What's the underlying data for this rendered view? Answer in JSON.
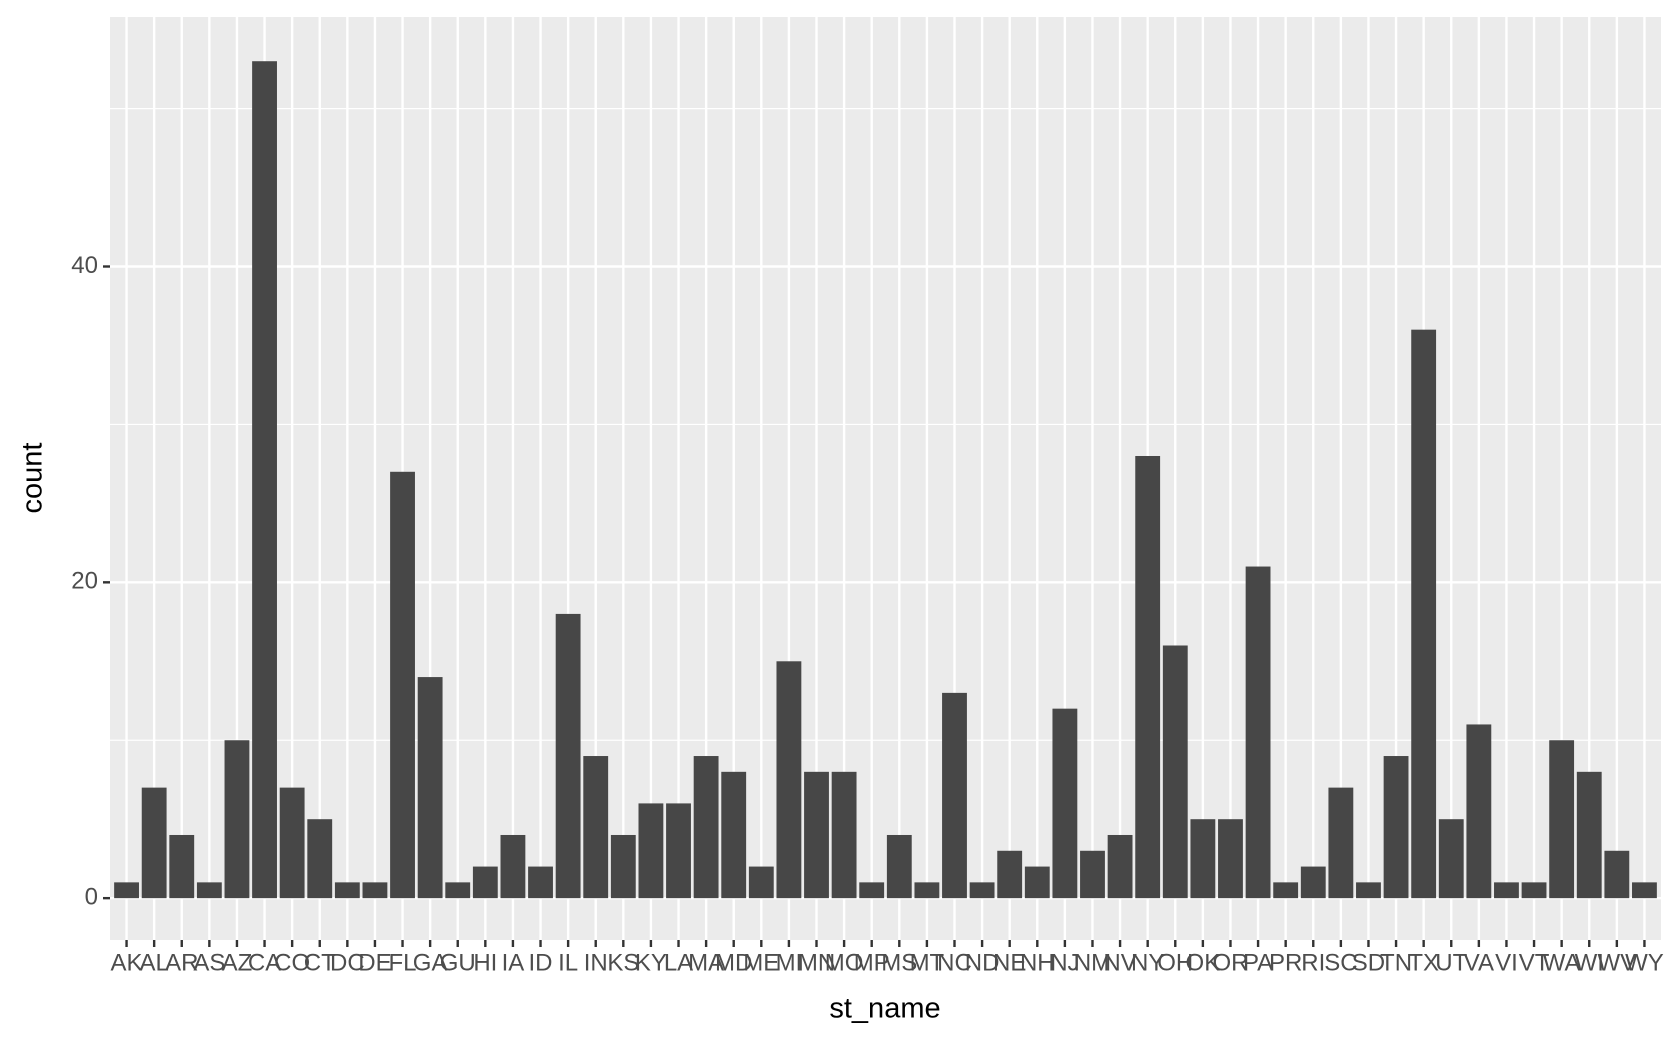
{
  "chart_data": {
    "type": "bar",
    "x_label": "st_name",
    "y_label": "count",
    "categories": [
      "AK",
      "AL",
      "AR",
      "AS",
      "AZ",
      "CA",
      "CO",
      "CT",
      "DC",
      "DE",
      "FL",
      "GA",
      "GU",
      "HI",
      "IA",
      "ID",
      "IL",
      "IN",
      "KS",
      "KY",
      "LA",
      "MA",
      "MD",
      "ME",
      "MI",
      "MN",
      "MO",
      "MP",
      "MS",
      "MT",
      "NC",
      "ND",
      "NE",
      "NH",
      "NJ",
      "NM",
      "NV",
      "NY",
      "OH",
      "OK",
      "OR",
      "PA",
      "PR",
      "RI",
      "SC",
      "SD",
      "TN",
      "TX",
      "UT",
      "VA",
      "VI",
      "VT",
      "WA",
      "WI",
      "WV",
      "WY"
    ],
    "values": [
      1,
      7,
      4,
      1,
      10,
      53,
      7,
      5,
      1,
      1,
      27,
      14,
      1,
      2,
      4,
      2,
      18,
      9,
      4,
      6,
      6,
      9,
      8,
      2,
      15,
      8,
      8,
      1,
      4,
      1,
      13,
      1,
      3,
      2,
      12,
      3,
      4,
      28,
      16,
      5,
      5,
      21,
      1,
      2,
      7,
      1,
      9,
      36,
      5,
      11,
      1,
      1,
      10,
      8,
      3,
      1
    ],
    "color": "#474747",
    "ylim": [
      -2.65,
      55.8
    ],
    "yticks": [
      0,
      20,
      40
    ],
    "minor_yticks": [
      10,
      30,
      50
    ],
    "grid": true
  }
}
